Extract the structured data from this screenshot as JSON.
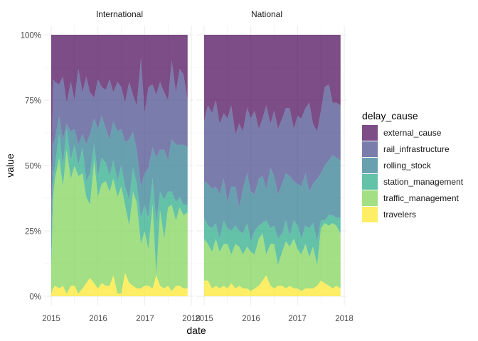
{
  "chart_data": {
    "type": "area",
    "stacked": "fill",
    "xlabel": "date",
    "ylabel": "value",
    "x_ticks": [
      "2015",
      "2016",
      "2017",
      "2018"
    ],
    "y_ticks": [
      "0%",
      "25%",
      "50%",
      "75%",
      "100%"
    ],
    "xlim": [
      2015,
      2018
    ],
    "ylim": [
      0,
      1
    ],
    "grid": true,
    "legend": {
      "title": "delay_cause",
      "position": "right"
    },
    "series": [
      {
        "name": "external_cause",
        "color": "#440154"
      },
      {
        "name": "rail_infrastructure",
        "color": "#414487"
      },
      {
        "name": "rolling_stock",
        "color": "#2A788E"
      },
      {
        "name": "station_management",
        "color": "#22A884"
      },
      {
        "name": "traffic_management",
        "color": "#7AD151"
      },
      {
        "name": "travelers",
        "color": "#FDE725"
      }
    ],
    "fill_opacity": 0.7,
    "panels": [
      {
        "label": "International",
        "x": [
          2015.0,
          2015.04,
          2015.08,
          2015.17,
          2015.25,
          2015.33,
          2015.42,
          2015.5,
          2015.58,
          2015.67,
          2015.75,
          2015.83,
          2015.92,
          2016.0,
          2016.08,
          2016.17,
          2016.25,
          2016.33,
          2016.42,
          2016.5,
          2016.58,
          2016.67,
          2016.75,
          2016.83,
          2016.92,
          2017.0,
          2017.08,
          2017.17,
          2017.25,
          2017.33,
          2017.42,
          2017.5,
          2017.58,
          2017.67,
          2017.75,
          2017.83,
          2017.92
        ],
        "cumulative": {
          "travelers": [
            0.01,
            0.03,
            0.04,
            0.03,
            0.04,
            0.01,
            0.04,
            0.04,
            0.01,
            0.03,
            0.05,
            0.07,
            0.05,
            0.03,
            0.05,
            0.04,
            0.04,
            0.08,
            0.01,
            0.01,
            0.09,
            0.05,
            0.04,
            0.03,
            0.03,
            0.04,
            0.04,
            0.03,
            0.08,
            0.04,
            0.03,
            0.04,
            0.02,
            0.04,
            0.04,
            0.03,
            0.03
          ],
          "traffic_management": [
            0.1,
            0.38,
            0.45,
            0.53,
            0.42,
            0.56,
            0.45,
            0.5,
            0.46,
            0.47,
            0.38,
            0.35,
            0.52,
            0.38,
            0.43,
            0.44,
            0.4,
            0.45,
            0.38,
            0.42,
            0.35,
            0.27,
            0.4,
            0.36,
            0.2,
            0.25,
            0.18,
            0.35,
            0.08,
            0.33,
            0.22,
            0.34,
            0.35,
            0.29,
            0.34,
            0.31,
            0.32
          ],
          "station_management": [
            0.14,
            0.46,
            0.5,
            0.62,
            0.5,
            0.64,
            0.52,
            0.58,
            0.5,
            0.57,
            0.44,
            0.47,
            0.58,
            0.46,
            0.53,
            0.51,
            0.46,
            0.52,
            0.44,
            0.5,
            0.42,
            0.37,
            0.49,
            0.43,
            0.3,
            0.35,
            0.3,
            0.45,
            0.28,
            0.4,
            0.37,
            0.4,
            0.4,
            0.36,
            0.38,
            0.35,
            0.35
          ],
          "rolling_stock": [
            0.28,
            0.58,
            0.6,
            0.69,
            0.6,
            0.66,
            0.63,
            0.64,
            0.58,
            0.62,
            0.58,
            0.62,
            0.68,
            0.64,
            0.69,
            0.64,
            0.6,
            0.67,
            0.63,
            0.64,
            0.59,
            0.6,
            0.63,
            0.56,
            0.42,
            0.47,
            0.49,
            0.57,
            0.53,
            0.56,
            0.56,
            0.52,
            0.6,
            0.58,
            0.58,
            0.58,
            0.57
          ],
          "rail_infrastructure": [
            0.35,
            0.83,
            0.82,
            0.81,
            0.84,
            0.74,
            0.82,
            0.75,
            0.87,
            0.78,
            0.84,
            0.78,
            0.76,
            0.83,
            0.8,
            0.79,
            0.83,
            0.78,
            0.82,
            0.8,
            0.74,
            0.82,
            0.77,
            0.73,
            0.91,
            0.7,
            0.8,
            0.81,
            0.77,
            0.82,
            0.78,
            0.75,
            0.9,
            0.78,
            0.87,
            0.85,
            0.75
          ],
          "external_cause": [
            1,
            1,
            1,
            1,
            1,
            1,
            1,
            1,
            1,
            1,
            1,
            1,
            1,
            1,
            1,
            1,
            1,
            1,
            1,
            1,
            1,
            1,
            1,
            1,
            1,
            1,
            1,
            1,
            1,
            1,
            1,
            1,
            1,
            1,
            1,
            1,
            1
          ]
        }
      },
      {
        "label": "National",
        "x": [
          2015.0,
          2015.08,
          2015.17,
          2015.25,
          2015.33,
          2015.42,
          2015.5,
          2015.58,
          2015.67,
          2015.75,
          2015.83,
          2015.92,
          2016.0,
          2016.08,
          2016.17,
          2016.25,
          2016.33,
          2016.42,
          2016.5,
          2016.58,
          2016.67,
          2016.75,
          2016.83,
          2016.92,
          2017.0,
          2017.08,
          2017.17,
          2017.25,
          2017.33,
          2017.42,
          2017.5,
          2017.58,
          2017.67,
          2017.75,
          2017.83,
          2017.92
        ],
        "cumulative": {
          "travelers": [
            0.06,
            0.06,
            0.03,
            0.04,
            0.03,
            0.04,
            0.03,
            0.05,
            0.03,
            0.04,
            0.03,
            0.03,
            0.02,
            0.03,
            0.04,
            0.06,
            0.08,
            0.04,
            0.03,
            0.04,
            0.04,
            0.03,
            0.04,
            0.03,
            0.03,
            0.02,
            0.03,
            0.03,
            0.03,
            0.04,
            0.06,
            0.05,
            0.04,
            0.03,
            0.04,
            0.03
          ],
          "traffic_management": [
            0.22,
            0.2,
            0.17,
            0.22,
            0.17,
            0.2,
            0.2,
            0.16,
            0.2,
            0.19,
            0.16,
            0.19,
            0.17,
            0.16,
            0.22,
            0.24,
            0.16,
            0.2,
            0.2,
            0.12,
            0.17,
            0.21,
            0.19,
            0.22,
            0.18,
            0.16,
            0.2,
            0.15,
            0.19,
            0.12,
            0.26,
            0.28,
            0.27,
            0.28,
            0.27,
            0.24
          ],
          "station_management": [
            0.3,
            0.27,
            0.26,
            0.28,
            0.22,
            0.29,
            0.26,
            0.25,
            0.27,
            0.25,
            0.24,
            0.28,
            0.21,
            0.25,
            0.27,
            0.28,
            0.29,
            0.26,
            0.27,
            0.22,
            0.24,
            0.29,
            0.23,
            0.29,
            0.27,
            0.22,
            0.27,
            0.26,
            0.28,
            0.21,
            0.29,
            0.29,
            0.31,
            0.31,
            0.3,
            0.3
          ],
          "rolling_stock": [
            0.44,
            0.43,
            0.41,
            0.42,
            0.39,
            0.45,
            0.36,
            0.42,
            0.42,
            0.34,
            0.41,
            0.47,
            0.4,
            0.39,
            0.45,
            0.46,
            0.41,
            0.49,
            0.46,
            0.39,
            0.43,
            0.47,
            0.46,
            0.44,
            0.43,
            0.42,
            0.47,
            0.4,
            0.43,
            0.45,
            0.47,
            0.5,
            0.52,
            0.54,
            0.53,
            0.52
          ],
          "rail_infrastructure": [
            0.67,
            0.73,
            0.7,
            0.75,
            0.66,
            0.7,
            0.68,
            0.73,
            0.62,
            0.66,
            0.63,
            0.72,
            0.68,
            0.71,
            0.64,
            0.68,
            0.73,
            0.66,
            0.71,
            0.64,
            0.68,
            0.72,
            0.72,
            0.64,
            0.69,
            0.68,
            0.72,
            0.74,
            0.66,
            0.63,
            0.71,
            0.8,
            0.81,
            0.74,
            0.74,
            0.73
          ],
          "external_cause": [
            1,
            1,
            1,
            1,
            1,
            1,
            1,
            1,
            1,
            1,
            1,
            1,
            1,
            1,
            1,
            1,
            1,
            1,
            1,
            1,
            1,
            1,
            1,
            1,
            1,
            1,
            1,
            1,
            1,
            1,
            1,
            1,
            1,
            1,
            1,
            1
          ]
        }
      }
    ]
  }
}
